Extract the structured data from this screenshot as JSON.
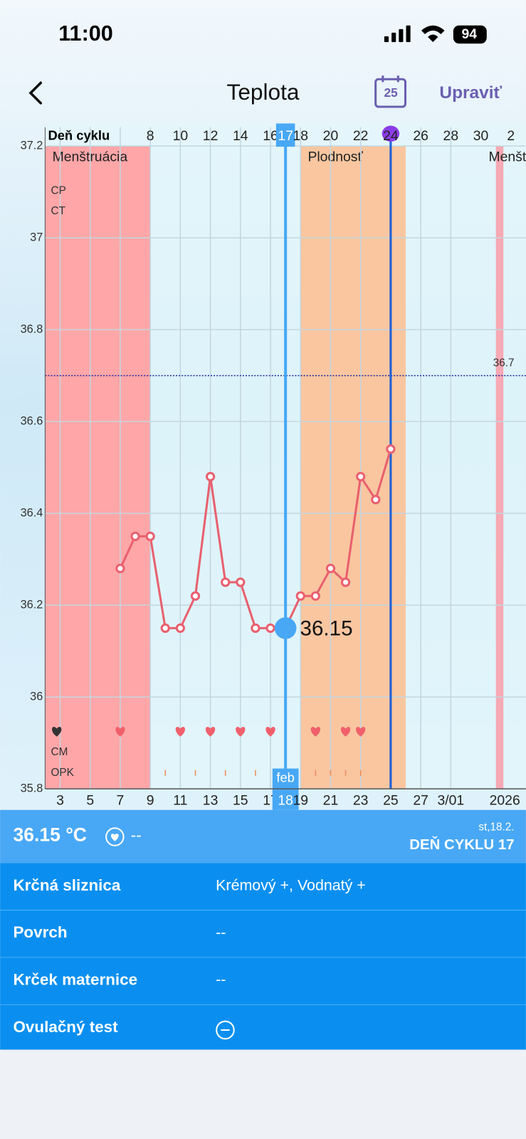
{
  "status_bar": {
    "time": "11:00",
    "battery": "94"
  },
  "header": {
    "title": "Teplota",
    "calendar_day": "25",
    "edit": "Upraviť"
  },
  "chart_data": {
    "type": "line",
    "x_axis_label": "Deň cyklu",
    "x": [
      6,
      7,
      8,
      9,
      10,
      11,
      12,
      13,
      14,
      15,
      16,
      17,
      18,
      19,
      20,
      21,
      22,
      23,
      24
    ],
    "values": [
      36.28,
      36.35,
      36.35,
      36.15,
      36.15,
      36.22,
      36.48,
      36.25,
      36.25,
      36.15,
      36.15,
      36.15,
      36.22,
      36.22,
      36.28,
      36.25,
      36.48,
      36.43,
      36.54
    ],
    "color": "#e9606f",
    "xlim": [
      1,
      33
    ],
    "ylim": [
      35.8,
      37.2
    ],
    "yticks": [
      35.8,
      36,
      36.2,
      36.4,
      36.6,
      36.8,
      37,
      37.2
    ],
    "xticks": [
      8,
      10,
      12,
      14,
      16,
      17,
      18,
      20,
      22,
      24,
      26,
      28,
      30,
      {
        "value": 32,
        "label": "2"
      }
    ],
    "x2ticks": [
      {
        "value": 2,
        "label": "3"
      },
      {
        "value": 4,
        "label": "5"
      },
      {
        "value": 6,
        "label": "7"
      },
      {
        "value": 8,
        "label": "9"
      },
      {
        "value": 10,
        "label": "11"
      },
      {
        "value": 12,
        "label": "13"
      },
      {
        "value": 14,
        "label": "15"
      },
      {
        "value": 16,
        "label": "17"
      },
      {
        "value": 17,
        "label": "18"
      },
      {
        "value": 18,
        "label": "19"
      },
      {
        "value": 20,
        "label": "21"
      },
      {
        "value": 22,
        "label": "23"
      },
      {
        "value": 24,
        "label": "25"
      },
      {
        "value": 26,
        "label": "27"
      },
      {
        "value": 28,
        "label": "3/01"
      }
    ],
    "month_label": "feb",
    "year_label": "2026",
    "bands": [
      {
        "label": "Menštruácia",
        "range": [
          1,
          8
        ],
        "color": "#ffa6a8"
      },
      {
        "label": "Plodnosť",
        "range": [
          18,
          25
        ],
        "color": "#f9c6a0"
      },
      {
        "label": "Menštruácia",
        "range": [
          31,
          31.5
        ],
        "color": "#f7a9b4"
      }
    ],
    "coverline": {
      "value": 36.7,
      "color": "#1a2a9c"
    },
    "selected_day": 17,
    "ovulation_day": 24,
    "row_labels": [
      "CP",
      "CT",
      "CM",
      "OPK"
    ],
    "intercourse_days": [
      6,
      10,
      12,
      14,
      16,
      19,
      21,
      22
    ],
    "opk_days": [
      9,
      11,
      13,
      15,
      19,
      20,
      21,
      22
    ],
    "grid": true
  },
  "summary": {
    "temperature": "36.15 °C",
    "extra": "--",
    "date": "st,18.2.",
    "cycle_day": "DEŇ CYKLU 17"
  },
  "details": [
    {
      "label": "Krčná sliznica",
      "value": "Krémový +, Vodnatý +"
    },
    {
      "label": "Povrch",
      "value": "--"
    },
    {
      "label": "Krček maternice",
      "value": "--"
    },
    {
      "label": "Ovulačný test"
    }
  ]
}
